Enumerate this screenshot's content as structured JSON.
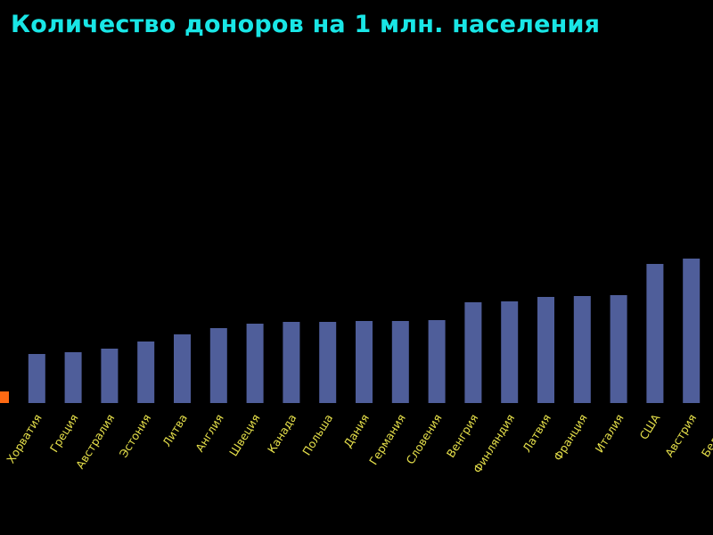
{
  "chart_data": {
    "type": "bar",
    "title": "Количество доноров на 1 млн. населения",
    "xlabel": "",
    "ylabel": "",
    "grid": false,
    "legend": "none",
    "categories": [
      "",
      "Хорватия",
      "Греция",
      "Австралия",
      "Эстония",
      "Литва",
      "Англия",
      "Швеция",
      "Канада",
      "Польша",
      "Дания",
      "Германия",
      "Словения",
      "Венгрия",
      "Финляндия",
      "Латвия",
      "Франция",
      "Италия",
      "США",
      "Австрия",
      "Бельгия"
    ],
    "values": [
      13,
      55,
      57,
      61,
      69,
      77,
      84,
      89,
      91,
      91,
      92,
      92,
      93,
      113,
      114,
      119,
      120,
      121,
      156,
      162,
      null
    ],
    "bar_colors": [
      "#ff6a13",
      "#4f5e9a",
      "#4f5e9a",
      "#4f5e9a",
      "#4f5e9a",
      "#4f5e9a",
      "#4f5e9a",
      "#4f5e9a",
      "#4f5e9a",
      "#4f5e9a",
      "#4f5e9a",
      "#4f5e9a",
      "#4f5e9a",
      "#4f5e9a",
      "#4f5e9a",
      "#4f5e9a",
      "#4f5e9a",
      "#4f5e9a",
      "#4f5e9a",
      "#4f5e9a",
      "#4f5e9a"
    ],
    "title_color": "#19e6e6",
    "label_color": "#e6e04a",
    "background": "#000000"
  }
}
